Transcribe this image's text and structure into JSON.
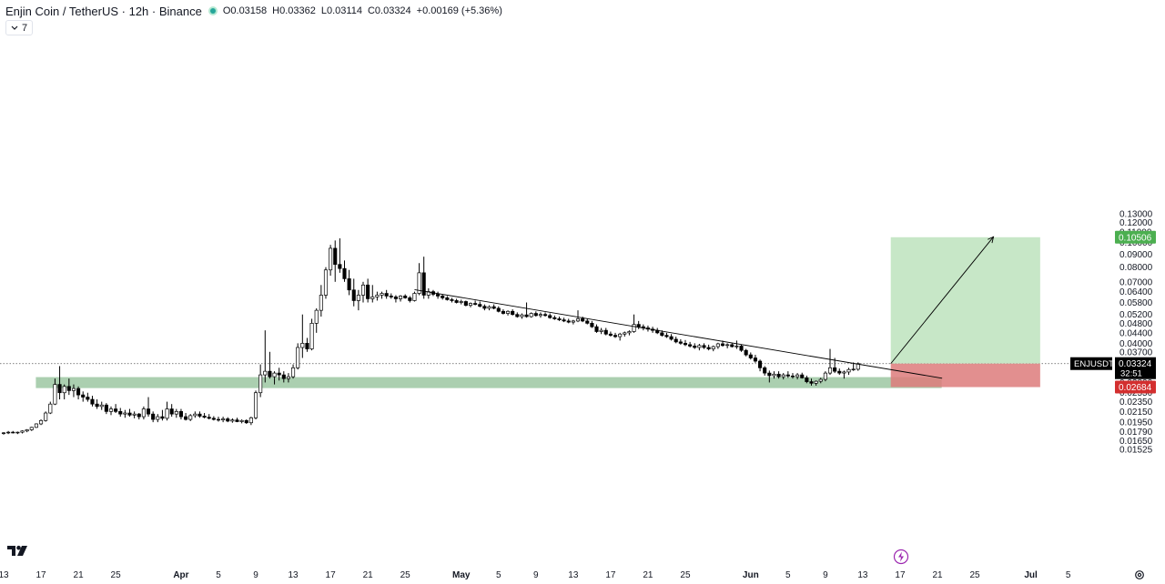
{
  "header": {
    "title": "Enjin Coin / TetherUS · 12h · Binance",
    "open_label": "O",
    "open": "0.03158",
    "high_label": "H",
    "high": "0.03362",
    "low_label": "L",
    "low": "0.03114",
    "close_label": "C",
    "close": "0.03324",
    "change": "+0.00169 (+5.36%)"
  },
  "indicator_toggle": {
    "count": "7"
  },
  "price_labels": {
    "current_symbol": "ENJUSDT",
    "current_price": "0.03324",
    "countdown": "32:51",
    "target": "0.10506",
    "stop": "0.02684"
  },
  "colors": {
    "up": "#ffffff",
    "down": "#000000",
    "wick": "#000000",
    "support_zone": "#8fbf95",
    "profit_zone": "#c4e6c4",
    "loss_zone": "#dd7b7b",
    "target_badge": "#4caf50",
    "stop_badge": "#d32f2f",
    "current_badge": "#000000"
  },
  "chart_data": {
    "type": "candlestick",
    "symbol": "ENJUSDT",
    "interval": "12h",
    "scale": "log",
    "y_ticks": [
      "0.13000",
      "0.12000",
      "0.11000",
      "0.10000",
      "0.09000",
      "0.08000",
      "0.07000",
      "0.06400",
      "0.05800",
      "0.05200",
      "0.04800",
      "0.04400",
      "0.04000",
      "0.03700",
      "0.03400",
      "0.03100",
      "0.02800",
      "0.02550",
      "0.02350",
      "0.02150",
      "0.01950",
      "0.01790",
      "0.01650",
      "0.01525"
    ],
    "x_ticks": [
      {
        "label": "13",
        "t": 0
      },
      {
        "label": "17",
        "t": 8
      },
      {
        "label": "21",
        "t": 16
      },
      {
        "label": "25",
        "t": 24
      },
      {
        "label": "Apr",
        "t": 38,
        "month": true
      },
      {
        "label": "5",
        "t": 46
      },
      {
        "label": "9",
        "t": 54
      },
      {
        "label": "13",
        "t": 62
      },
      {
        "label": "17",
        "t": 70
      },
      {
        "label": "21",
        "t": 78
      },
      {
        "label": "25",
        "t": 86
      },
      {
        "label": "May",
        "t": 98,
        "month": true
      },
      {
        "label": "5",
        "t": 106
      },
      {
        "label": "9",
        "t": 114
      },
      {
        "label": "13",
        "t": 122
      },
      {
        "label": "17",
        "t": 130
      },
      {
        "label": "21",
        "t": 138
      },
      {
        "label": "25",
        "t": 146
      },
      {
        "label": "Jun",
        "t": 160,
        "month": true
      },
      {
        "label": "5",
        "t": 168
      },
      {
        "label": "9",
        "t": 176
      },
      {
        "label": "13",
        "t": 184
      },
      {
        "label": "17",
        "t": 192
      },
      {
        "label": "21",
        "t": 200
      },
      {
        "label": "25",
        "t": 208
      },
      {
        "label": "Jul",
        "t": 220,
        "month": true
      },
      {
        "label": "5",
        "t": 228
      }
    ],
    "candles": [
      [
        0.0176,
        0.0178,
        0.0174,
        0.0177
      ],
      [
        0.0177,
        0.018,
        0.0175,
        0.0178
      ],
      [
        0.0178,
        0.018,
        0.0176,
        0.0177
      ],
      [
        0.0177,
        0.0179,
        0.0175,
        0.0178
      ],
      [
        0.0178,
        0.0181,
        0.0176,
        0.018
      ],
      [
        0.018,
        0.0183,
        0.0178,
        0.0182
      ],
      [
        0.0182,
        0.0187,
        0.018,
        0.0186
      ],
      [
        0.0186,
        0.0193,
        0.0185,
        0.0192
      ],
      [
        0.0192,
        0.02,
        0.019,
        0.0198
      ],
      [
        0.0198,
        0.0215,
        0.0196,
        0.0212
      ],
      [
        0.0212,
        0.0235,
        0.021,
        0.023
      ],
      [
        0.023,
        0.029,
        0.0228,
        0.0275
      ],
      [
        0.0275,
        0.0325,
        0.024,
        0.0255
      ],
      [
        0.0255,
        0.0275,
        0.024,
        0.027
      ],
      [
        0.027,
        0.029,
        0.025,
        0.026
      ],
      [
        0.026,
        0.0275,
        0.0245,
        0.0265
      ],
      [
        0.0265,
        0.027,
        0.024,
        0.025
      ],
      [
        0.025,
        0.0258,
        0.0235,
        0.0245
      ],
      [
        0.0245,
        0.0255,
        0.0235,
        0.024
      ],
      [
        0.024,
        0.0248,
        0.0225,
        0.023
      ],
      [
        0.023,
        0.024,
        0.022,
        0.0225
      ],
      [
        0.0225,
        0.0235,
        0.0218,
        0.0228
      ],
      [
        0.0228,
        0.0232,
        0.021,
        0.0215
      ],
      [
        0.0215,
        0.0225,
        0.0208,
        0.022
      ],
      [
        0.022,
        0.023,
        0.0212,
        0.0215
      ],
      [
        0.0215,
        0.0222,
        0.0205,
        0.021
      ],
      [
        0.021,
        0.0218,
        0.0203,
        0.0212
      ],
      [
        0.0212,
        0.022,
        0.0205,
        0.0208
      ],
      [
        0.0208,
        0.0215,
        0.0202,
        0.021
      ],
      [
        0.021,
        0.0212,
        0.02,
        0.0205
      ],
      [
        0.0205,
        0.0225,
        0.02,
        0.022
      ],
      [
        0.022,
        0.0245,
        0.0205,
        0.021
      ],
      [
        0.021,
        0.0215,
        0.0195,
        0.02
      ],
      [
        0.02,
        0.021,
        0.0195,
        0.0205
      ],
      [
        0.0205,
        0.0218,
        0.0198,
        0.0202
      ],
      [
        0.0202,
        0.0235,
        0.0198,
        0.022
      ],
      [
        0.022,
        0.023,
        0.0205,
        0.021
      ],
      [
        0.021,
        0.022,
        0.0203,
        0.0215
      ],
      [
        0.0215,
        0.022,
        0.02,
        0.0205
      ],
      [
        0.0205,
        0.0212,
        0.0198,
        0.02
      ],
      [
        0.02,
        0.021,
        0.0197,
        0.0207
      ],
      [
        0.0207,
        0.0215,
        0.0203,
        0.021
      ],
      [
        0.021,
        0.0215,
        0.0203,
        0.0206
      ],
      [
        0.0206,
        0.0212,
        0.0202,
        0.0204
      ],
      [
        0.0204,
        0.021,
        0.02,
        0.0202
      ],
      [
        0.0202,
        0.0206,
        0.0198,
        0.02
      ],
      [
        0.02,
        0.0205,
        0.0196,
        0.0199
      ],
      [
        0.0199,
        0.0205,
        0.0195,
        0.0201
      ],
      [
        0.0201,
        0.0204,
        0.0195,
        0.0197
      ],
      [
        0.0197,
        0.0202,
        0.0194,
        0.0199
      ],
      [
        0.0199,
        0.0203,
        0.0195,
        0.0196
      ],
      [
        0.0196,
        0.02,
        0.0193,
        0.0198
      ],
      [
        0.0198,
        0.02,
        0.0192,
        0.0194
      ],
      [
        0.0194,
        0.0205,
        0.019,
        0.0203
      ],
      [
        0.0203,
        0.026,
        0.02,
        0.0255
      ],
      [
        0.0255,
        0.033,
        0.0245,
        0.03
      ],
      [
        0.03,
        0.045,
        0.028,
        0.031
      ],
      [
        0.031,
        0.037,
        0.029,
        0.0295
      ],
      [
        0.0295,
        0.031,
        0.0275,
        0.0305
      ],
      [
        0.0305,
        0.032,
        0.0285,
        0.03
      ],
      [
        0.03,
        0.031,
        0.028,
        0.029
      ],
      [
        0.029,
        0.0305,
        0.028,
        0.0295
      ],
      [
        0.0295,
        0.033,
        0.029,
        0.032
      ],
      [
        0.032,
        0.04,
        0.0315,
        0.0385
      ],
      [
        0.0385,
        0.052,
        0.035,
        0.04
      ],
      [
        0.04,
        0.042,
        0.037,
        0.038
      ],
      [
        0.038,
        0.05,
        0.0375,
        0.048
      ],
      [
        0.048,
        0.055,
        0.044,
        0.054
      ],
      [
        0.054,
        0.068,
        0.051,
        0.062
      ],
      [
        0.062,
        0.08,
        0.06,
        0.078
      ],
      [
        0.078,
        0.098,
        0.074,
        0.095
      ],
      [
        0.095,
        0.102,
        0.07,
        0.082
      ],
      [
        0.082,
        0.104,
        0.076,
        0.079
      ],
      [
        0.079,
        0.085,
        0.07,
        0.072
      ],
      [
        0.072,
        0.078,
        0.062,
        0.065
      ],
      [
        0.065,
        0.072,
        0.056,
        0.059
      ],
      [
        0.059,
        0.065,
        0.054,
        0.062
      ],
      [
        0.062,
        0.07,
        0.058,
        0.068
      ],
      [
        0.068,
        0.072,
        0.058,
        0.06
      ],
      [
        0.06,
        0.068,
        0.058,
        0.061
      ],
      [
        0.061,
        0.064,
        0.059,
        0.062
      ],
      [
        0.062,
        0.064,
        0.06,
        0.063
      ],
      [
        0.063,
        0.065,
        0.06,
        0.0615
      ],
      [
        0.0615,
        0.063,
        0.06,
        0.061
      ],
      [
        0.061,
        0.062,
        0.058,
        0.06
      ],
      [
        0.06,
        0.062,
        0.0585,
        0.0615
      ],
      [
        0.0615,
        0.0625,
        0.06,
        0.0605
      ],
      [
        0.0605,
        0.0615,
        0.058,
        0.059
      ],
      [
        0.059,
        0.064,
        0.0585,
        0.063
      ],
      [
        0.063,
        0.083,
        0.062,
        0.076
      ],
      [
        0.076,
        0.088,
        0.06,
        0.062
      ],
      [
        0.062,
        0.066,
        0.06,
        0.064
      ],
      [
        0.064,
        0.065,
        0.0615,
        0.0625
      ],
      [
        0.0625,
        0.064,
        0.06,
        0.0615
      ],
      [
        0.0615,
        0.0625,
        0.0595,
        0.0605
      ],
      [
        0.0605,
        0.0615,
        0.059,
        0.0595
      ],
      [
        0.0595,
        0.0605,
        0.058,
        0.059
      ],
      [
        0.059,
        0.06,
        0.0575,
        0.058
      ],
      [
        0.058,
        0.0595,
        0.057,
        0.0585
      ],
      [
        0.0585,
        0.059,
        0.056,
        0.0565
      ],
      [
        0.0565,
        0.058,
        0.0555,
        0.0575
      ],
      [
        0.0575,
        0.059,
        0.0565,
        0.057
      ],
      [
        0.057,
        0.0585,
        0.0555,
        0.056
      ],
      [
        0.056,
        0.057,
        0.054,
        0.055
      ],
      [
        0.055,
        0.0565,
        0.054,
        0.0558
      ],
      [
        0.0558,
        0.057,
        0.0545,
        0.055
      ],
      [
        0.055,
        0.056,
        0.053,
        0.0535
      ],
      [
        0.0535,
        0.0545,
        0.052,
        0.0525
      ],
      [
        0.0525,
        0.054,
        0.0515,
        0.0535
      ],
      [
        0.0535,
        0.0545,
        0.0515,
        0.052
      ],
      [
        0.052,
        0.053,
        0.0505,
        0.051
      ],
      [
        0.051,
        0.0525,
        0.05,
        0.0518
      ],
      [
        0.0518,
        0.058,
        0.0505,
        0.051
      ],
      [
        0.051,
        0.053,
        0.0505,
        0.0525
      ],
      [
        0.0525,
        0.0535,
        0.051,
        0.0515
      ],
      [
        0.0515,
        0.053,
        0.0505,
        0.052
      ],
      [
        0.052,
        0.053,
        0.051,
        0.0515
      ],
      [
        0.0515,
        0.0525,
        0.05,
        0.0505
      ],
      [
        0.0505,
        0.0515,
        0.0495,
        0.05
      ],
      [
        0.05,
        0.051,
        0.049,
        0.0495
      ],
      [
        0.0495,
        0.0505,
        0.0485,
        0.049
      ],
      [
        0.049,
        0.05,
        0.048,
        0.0485
      ],
      [
        0.0485,
        0.0495,
        0.0475,
        0.049
      ],
      [
        0.049,
        0.054,
        0.0485,
        0.05
      ],
      [
        0.05,
        0.051,
        0.0485,
        0.049
      ],
      [
        0.049,
        0.05,
        0.0475,
        0.048
      ],
      [
        0.048,
        0.049,
        0.046,
        0.0465
      ],
      [
        0.0465,
        0.0475,
        0.044,
        0.0445
      ],
      [
        0.0445,
        0.046,
        0.0435,
        0.045
      ],
      [
        0.045,
        0.046,
        0.043,
        0.0435
      ],
      [
        0.0435,
        0.0445,
        0.0425,
        0.043
      ],
      [
        0.043,
        0.044,
        0.042,
        0.0425
      ],
      [
        0.0425,
        0.044,
        0.041,
        0.0435
      ],
      [
        0.0435,
        0.0445,
        0.0425,
        0.044
      ],
      [
        0.044,
        0.045,
        0.043,
        0.0445
      ],
      [
        0.0445,
        0.052,
        0.044,
        0.0475
      ],
      [
        0.0475,
        0.049,
        0.0455,
        0.0465
      ],
      [
        0.0465,
        0.0475,
        0.045,
        0.046
      ],
      [
        0.046,
        0.047,
        0.0445,
        0.0455
      ],
      [
        0.0455,
        0.0465,
        0.044,
        0.045
      ],
      [
        0.045,
        0.046,
        0.0435,
        0.044
      ],
      [
        0.044,
        0.045,
        0.0425,
        0.043
      ],
      [
        0.043,
        0.044,
        0.042,
        0.0425
      ],
      [
        0.0425,
        0.0435,
        0.041,
        0.0415
      ],
      [
        0.0415,
        0.0425,
        0.04,
        0.0405
      ],
      [
        0.0405,
        0.0415,
        0.0395,
        0.04
      ],
      [
        0.04,
        0.0412,
        0.039,
        0.0395
      ],
      [
        0.0395,
        0.0405,
        0.0385,
        0.039
      ],
      [
        0.039,
        0.04,
        0.038,
        0.0385
      ],
      [
        0.0385,
        0.0398,
        0.0375,
        0.0392
      ],
      [
        0.0392,
        0.04,
        0.038,
        0.0385
      ],
      [
        0.0385,
        0.0395,
        0.0375,
        0.038
      ],
      [
        0.038,
        0.0392,
        0.0372,
        0.0388
      ],
      [
        0.0388,
        0.0402,
        0.038,
        0.0398
      ],
      [
        0.0398,
        0.041,
        0.0388,
        0.0392
      ],
      [
        0.0392,
        0.04,
        0.0382,
        0.0395
      ],
      [
        0.0395,
        0.04,
        0.0385,
        0.0388
      ],
      [
        0.0388,
        0.041,
        0.038,
        0.039
      ],
      [
        0.039,
        0.0395,
        0.037,
        0.0375
      ],
      [
        0.0375,
        0.038,
        0.0355,
        0.036
      ],
      [
        0.036,
        0.0368,
        0.0345,
        0.035
      ],
      [
        0.035,
        0.036,
        0.0335,
        0.034
      ],
      [
        0.034,
        0.0345,
        0.031,
        0.032
      ],
      [
        0.032,
        0.0325,
        0.0298,
        0.0305
      ],
      [
        0.0305,
        0.0312,
        0.028,
        0.0298
      ],
      [
        0.0298,
        0.031,
        0.029,
        0.0302
      ],
      [
        0.0302,
        0.031,
        0.029,
        0.0295
      ],
      [
        0.0295,
        0.0305,
        0.0288,
        0.03
      ],
      [
        0.03,
        0.031,
        0.0292,
        0.0297
      ],
      [
        0.0297,
        0.0305,
        0.029,
        0.0295
      ],
      [
        0.0295,
        0.0305,
        0.0288,
        0.03
      ],
      [
        0.03,
        0.0306,
        0.029,
        0.0292
      ],
      [
        0.0292,
        0.0298,
        0.0278,
        0.0282
      ],
      [
        0.0282,
        0.029,
        0.0272,
        0.0278
      ],
      [
        0.0278,
        0.0285,
        0.0272,
        0.0283
      ],
      [
        0.0283,
        0.0292,
        0.0278,
        0.0288
      ],
      [
        0.0288,
        0.031,
        0.0283,
        0.0305
      ],
      [
        0.0305,
        0.038,
        0.03,
        0.032
      ],
      [
        0.032,
        0.035,
        0.0305,
        0.031
      ],
      [
        0.031,
        0.0318,
        0.03,
        0.0305
      ],
      [
        0.0305,
        0.0312,
        0.029,
        0.0308
      ],
      [
        0.0308,
        0.032,
        0.03,
        0.0315
      ],
      [
        0.0315,
        0.0336,
        0.0311,
        0.0316
      ],
      [
        0.03158,
        0.03362,
        0.03114,
        0.03324
      ]
    ],
    "support_zone": {
      "from": 0.0266,
      "to": 0.0294,
      "t_start": 7,
      "t_end": 201
    },
    "trendline": {
      "t1": 88,
      "p1": 0.0652,
      "t2": 201,
      "p2": 0.0291
    },
    "position": {
      "type": "long",
      "entry": 0.03324,
      "target": 0.10506,
      "stop": 0.02684,
      "t_start": 190,
      "t_end": 222
    },
    "projection_arrow": {
      "t1": 190,
      "p1": 0.03324,
      "t2": 212,
      "p2": 0.1055
    }
  }
}
